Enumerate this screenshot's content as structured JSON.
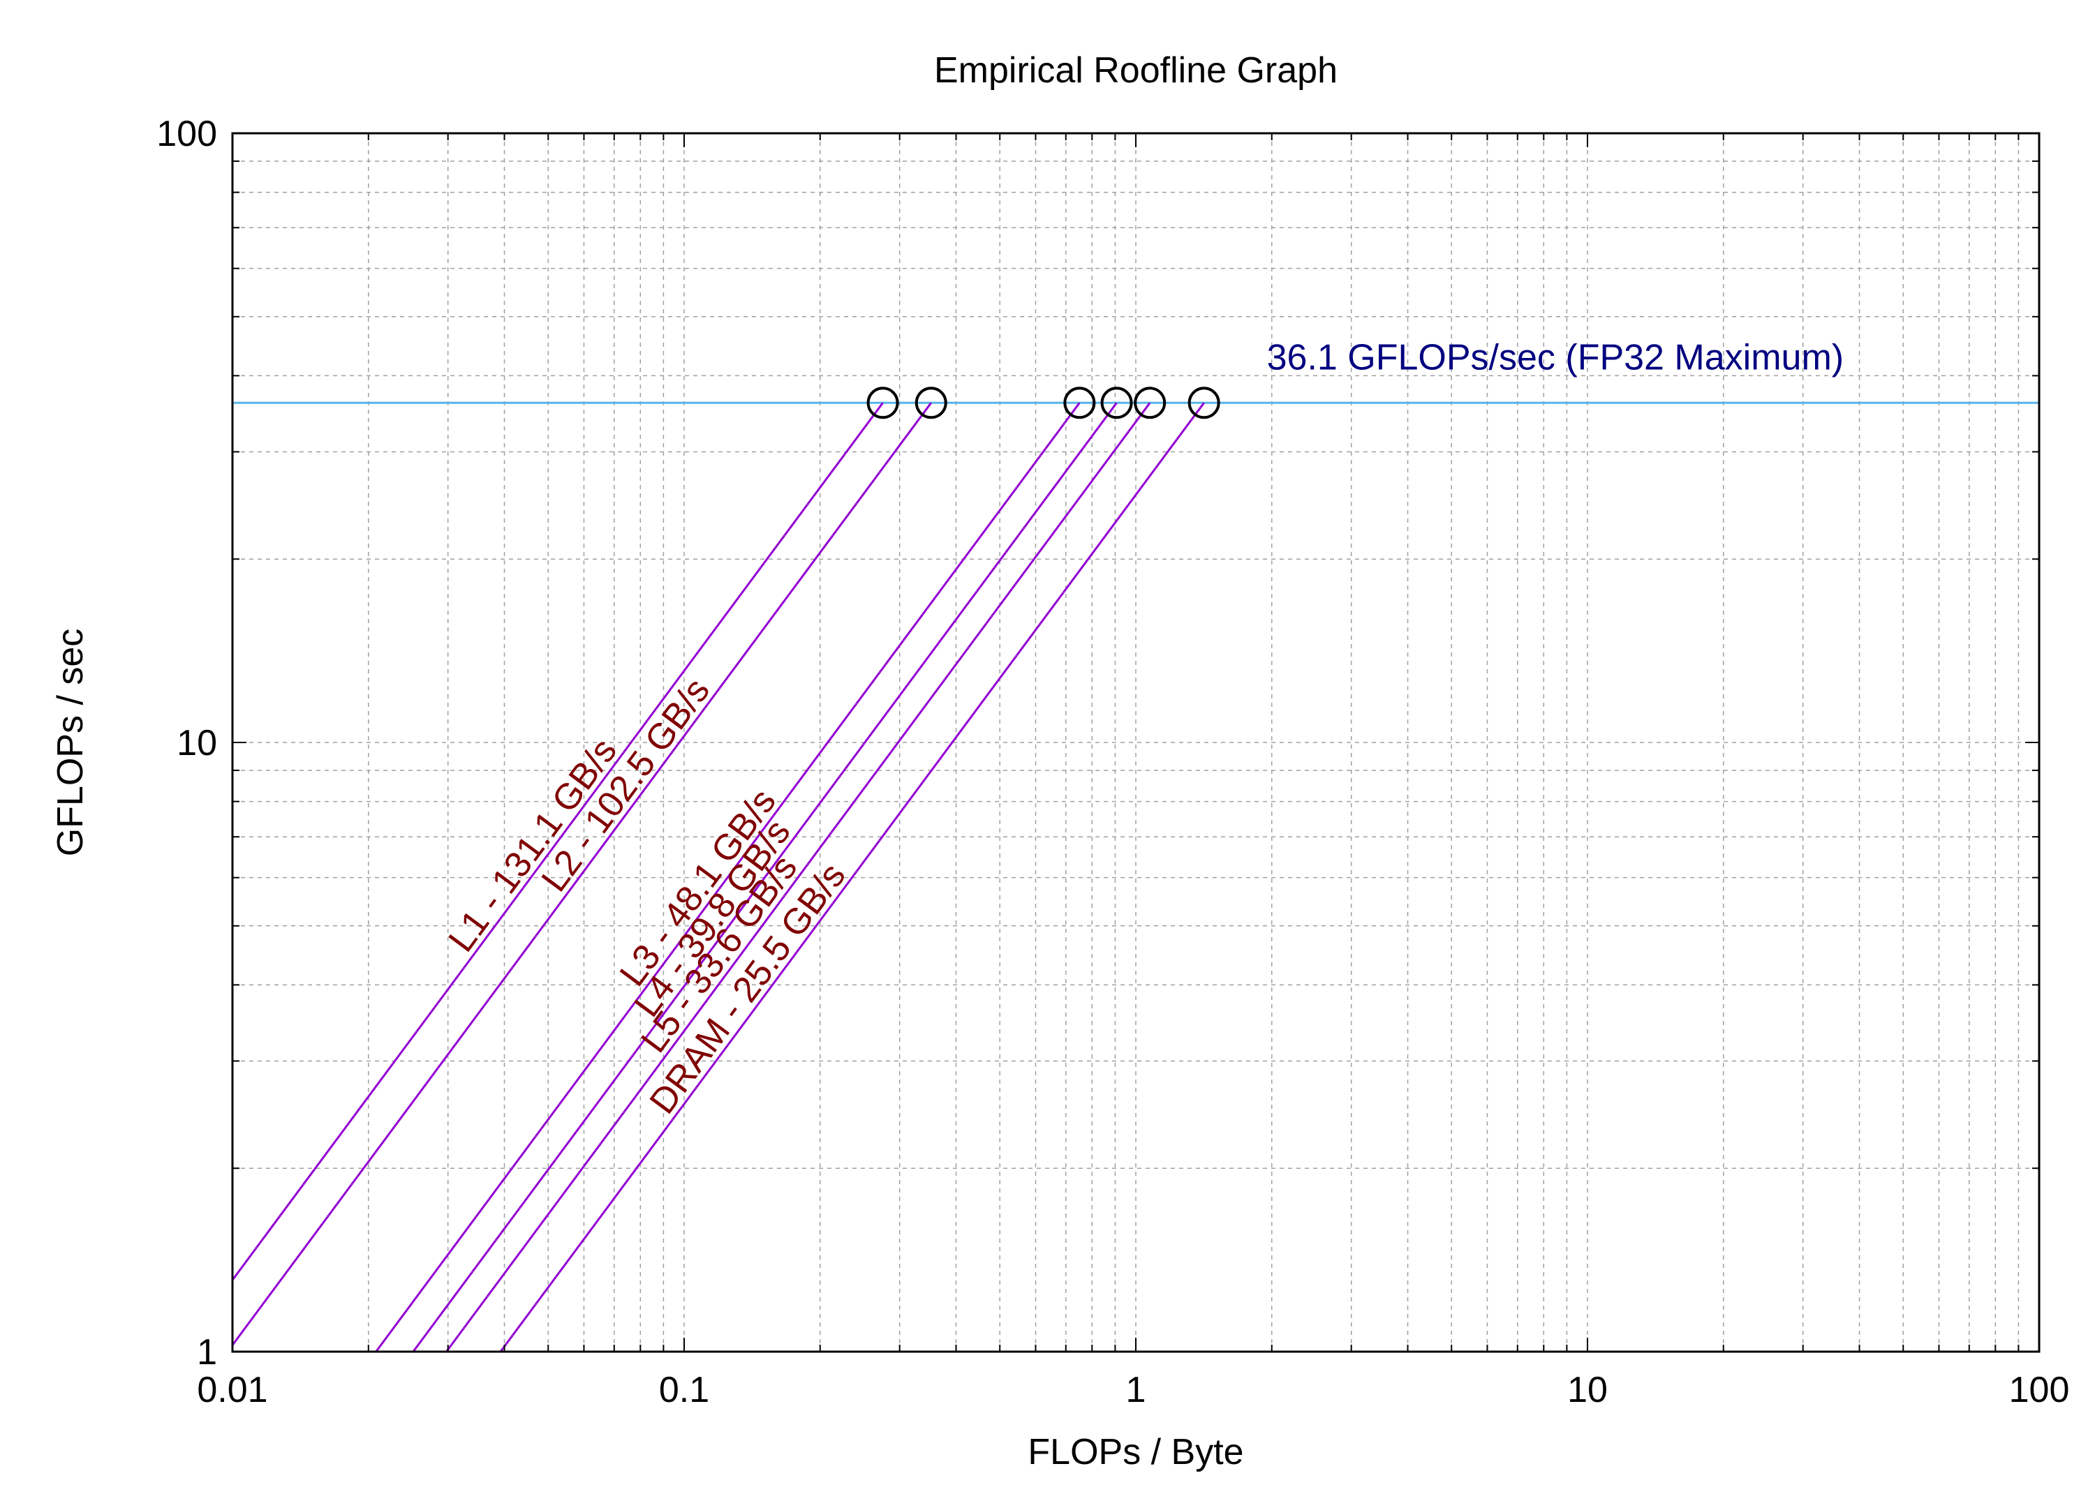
{
  "chart_data": {
    "type": "line",
    "title": "Empirical Roofline Graph",
    "xlabel": "FLOPs / Byte",
    "ylabel": "GFLOPs / sec",
    "xscale": "log",
    "yscale": "log",
    "xlim": [
      0.01,
      100
    ],
    "ylim": [
      1,
      100
    ],
    "x_ticks": [
      {
        "value": 0.01,
        "label": "0.01"
      },
      {
        "value": 0.1,
        "label": "0.1"
      },
      {
        "value": 1,
        "label": "1"
      },
      {
        "value": 10,
        "label": "10"
      },
      {
        "value": 100,
        "label": "100"
      }
    ],
    "y_ticks": [
      {
        "value": 1,
        "label": "1"
      },
      {
        "value": 10,
        "label": "10"
      },
      {
        "value": 100,
        "label": "100"
      }
    ],
    "grid": true,
    "peak": {
      "value": 36.1,
      "label": "36.1 GFLOPs/sec (FP32 Maximum)",
      "color": "#56b4e9",
      "label_color": "#000080"
    },
    "bandwidths": [
      {
        "label": "L1 - 131.1 GB/s",
        "value": 131.1
      },
      {
        "label": "L2 - 102.5 GB/s",
        "value": 102.5
      },
      {
        "label": "L3 - 48.1 GB/s",
        "value": 48.1
      },
      {
        "label": "L4 - 39.8 GB/s",
        "value": 39.8
      },
      {
        "label": "L5 - 33.6 GB/s",
        "value": 33.6
      },
      {
        "label": "DRAM - 25.5 GB/s",
        "value": 25.5
      }
    ],
    "line_color": "#9400d3",
    "label_color": "#800000"
  }
}
